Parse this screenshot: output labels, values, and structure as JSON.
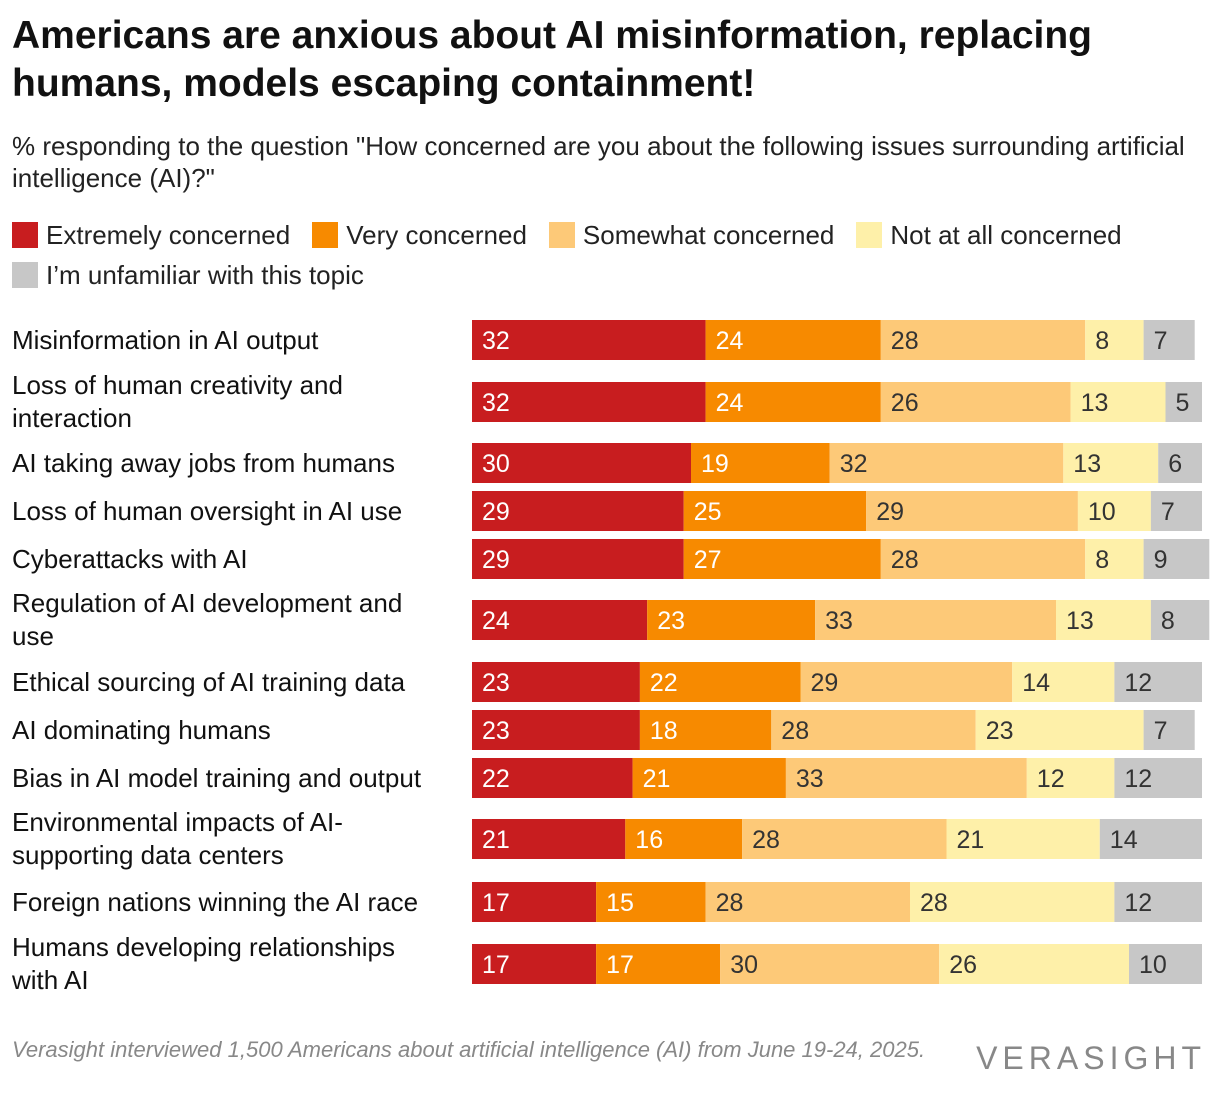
{
  "title": "Americans are anxious about AI misinformation, replacing humans, models escaping containment!",
  "subtitle": "% responding to the question \"How concerned are you about the following issues surrounding artificial intelligence (AI)?\"",
  "footer": {
    "note": "Verasight interviewed 1,500 Americans about artificial intelligence (AI) from June 19-24, 2025.",
    "brand": "VERASIGHT"
  },
  "chart_data": {
    "type": "bar",
    "orientation": "horizontal-stacked",
    "unit": "%",
    "categories": [
      "Misinformation in AI output",
      "Loss of human creativity and interaction",
      "AI taking away jobs from humans",
      "Loss of human oversight in AI use",
      "Cyberattacks with AI",
      "Regulation of AI development and use",
      "Ethical sourcing of AI training data",
      "AI dominating humans",
      "Bias in AI model training and output",
      "Environmental impacts of AI-supporting data centers",
      "Foreign nations winning the AI race",
      "Humans developing relationships with AI"
    ],
    "series": [
      {
        "name": "Extremely concerned",
        "color": "#c81d1f",
        "label_color": "#ffffff",
        "values": [
          32,
          32,
          30,
          29,
          29,
          24,
          23,
          23,
          22,
          21,
          17,
          17
        ]
      },
      {
        "name": "Very concerned",
        "color": "#f78a00",
        "label_color": "#ffffff",
        "values": [
          24,
          24,
          19,
          25,
          27,
          23,
          22,
          18,
          21,
          16,
          15,
          17
        ]
      },
      {
        "name": "Somewhat concerned",
        "color": "#fdc978",
        "label_color": "#333333",
        "values": [
          28,
          26,
          32,
          29,
          28,
          33,
          29,
          28,
          33,
          28,
          28,
          30
        ]
      },
      {
        "name": "Not at all concerned",
        "color": "#fef0a9",
        "label_color": "#333333",
        "values": [
          8,
          13,
          13,
          10,
          8,
          13,
          14,
          23,
          12,
          21,
          28,
          26
        ]
      },
      {
        "name": "I’m unfamiliar with this topic",
        "color": "#c7c7c7",
        "label_color": "#333333",
        "values": [
          7,
          5,
          6,
          7,
          9,
          8,
          12,
          7,
          12,
          14,
          12,
          10
        ]
      }
    ],
    "xlim": [
      0,
      100
    ],
    "grid": false,
    "legend_position": "top-left"
  }
}
